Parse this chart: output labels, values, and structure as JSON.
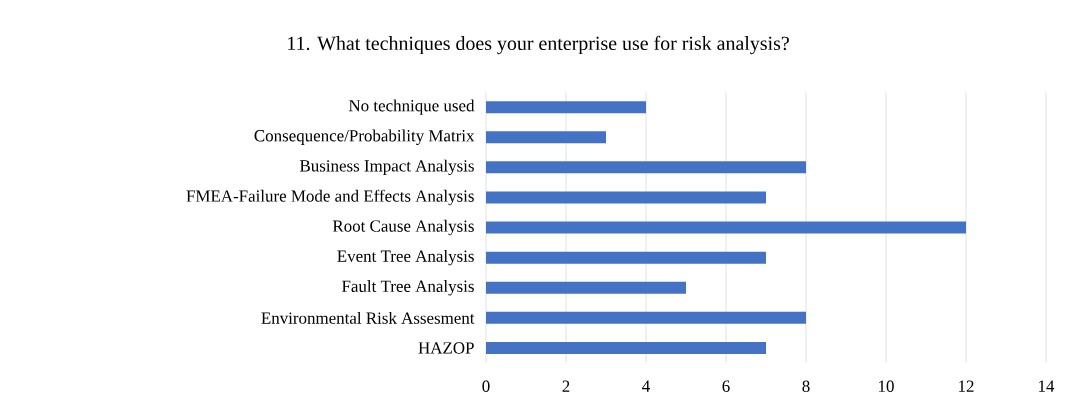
{
  "chart_data": {
    "type": "bar",
    "orientation": "horizontal",
    "title": "11. What techniques does your enterprise use for risk analysis?",
    "categories": [
      "No technique used",
      "Consequence/Probability Matrix",
      "Business Impact Analysis",
      "FMEA-Failure Mode and Effects Analysis",
      "Root Cause Analysis",
      "Event Tree Analysis",
      "Fault Tree Analysis",
      "Environmental Risk Assesment",
      "HAZOP"
    ],
    "values": [
      4,
      3,
      8,
      7,
      12,
      7,
      5,
      8,
      7
    ],
    "color": "#4472c4",
    "xlim": [
      0,
      14
    ],
    "xticks": [
      0,
      2,
      4,
      6,
      8,
      10,
      12,
      14
    ],
    "grid": "x"
  }
}
